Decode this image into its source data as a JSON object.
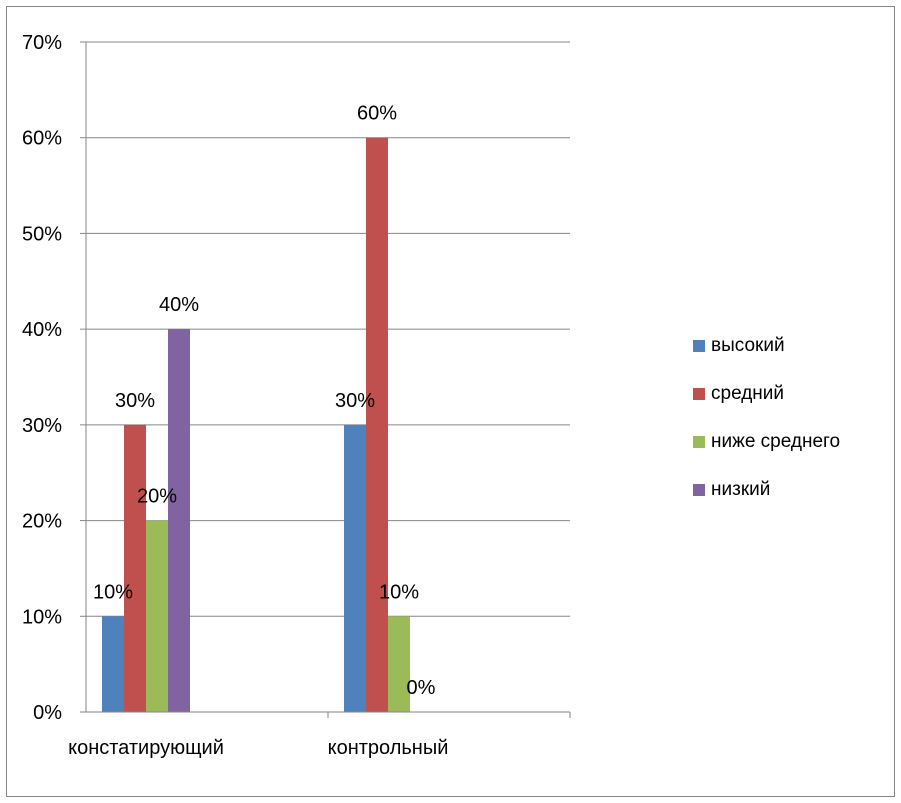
{
  "chart_data": {
    "type": "bar",
    "categories": [
      "констатирующий",
      "контрольный"
    ],
    "series": [
      {
        "name": "высокий",
        "values": [
          10,
          30
        ],
        "color": "#4F81BD"
      },
      {
        "name": "средний",
        "values": [
          30,
          60
        ],
        "color": "#C0504D"
      },
      {
        "name": "ниже среднего",
        "values": [
          20,
          10
        ],
        "color": "#9BBB59"
      },
      {
        "name": "низкий",
        "values": [
          40,
          0
        ],
        "color": "#8064A2"
      }
    ],
    "data_labels": [
      [
        "10%",
        "30%"
      ],
      [
        "30%",
        "60%"
      ],
      [
        "20%",
        "10%"
      ],
      [
        "40%",
        "0%"
      ]
    ],
    "ylim": [
      0,
      70
    ],
    "yticks": [
      "0%",
      "10%",
      "20%",
      "30%",
      "40%",
      "50%",
      "60%",
      "70%"
    ],
    "grid": true,
    "legend_position": "right",
    "title": "",
    "xlabel": "",
    "ylabel": ""
  }
}
